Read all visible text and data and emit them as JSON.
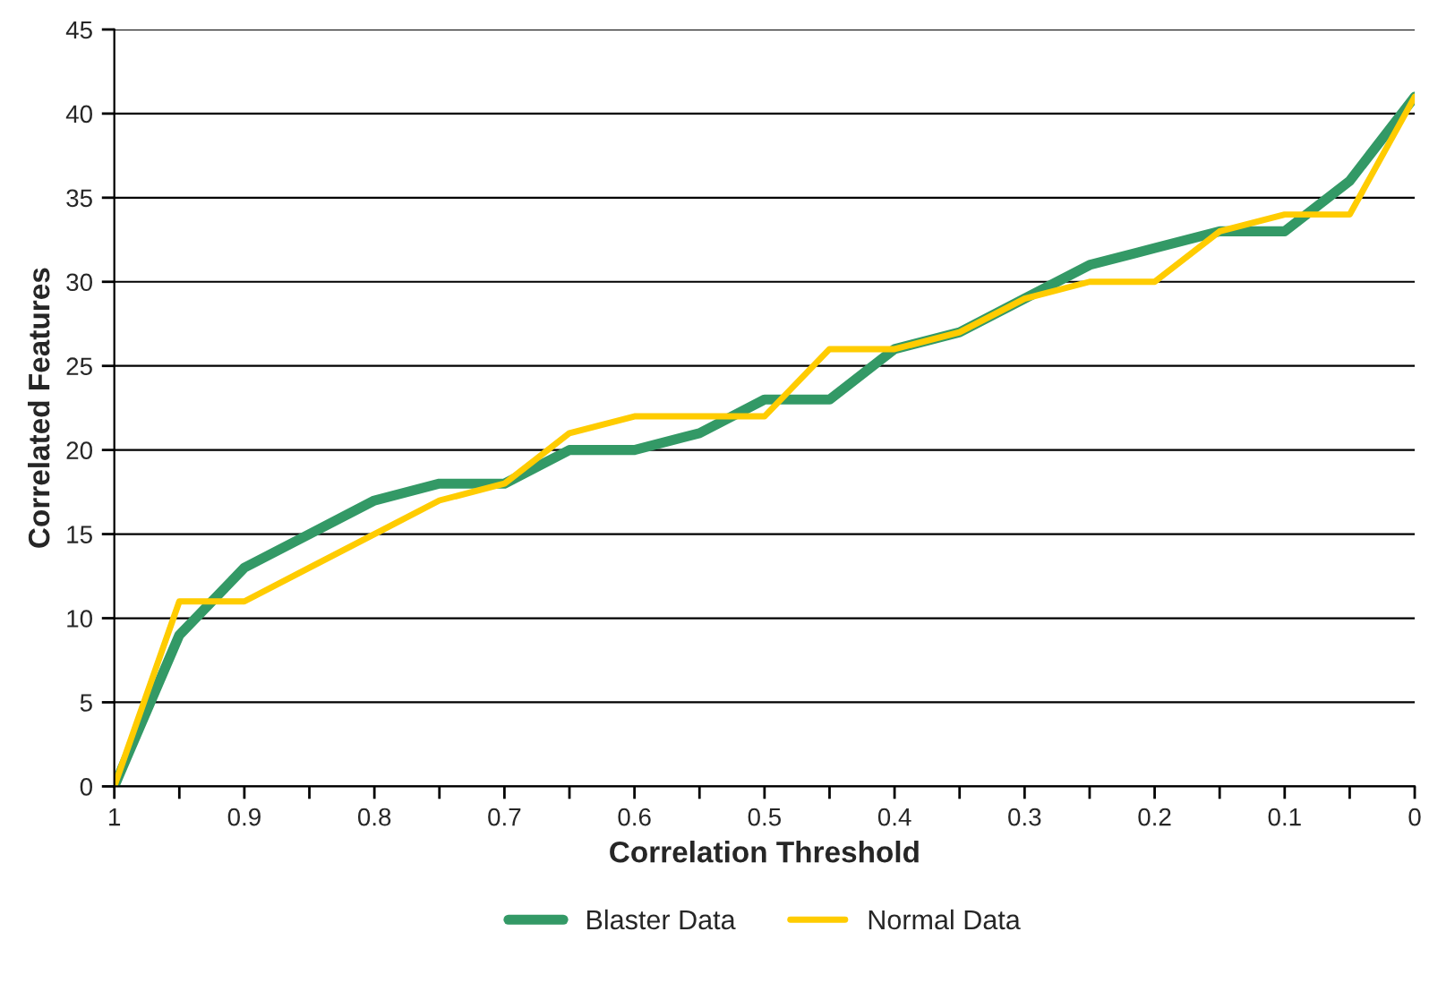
{
  "chart_data": {
    "type": "line",
    "xlabel": "Correlation Threshold",
    "ylabel": "Correlated Features",
    "x": [
      1,
      0.95,
      0.9,
      0.85,
      0.8,
      0.75,
      0.7,
      0.65,
      0.6,
      0.55,
      0.5,
      0.45,
      0.4,
      0.35,
      0.3,
      0.25,
      0.2,
      0.15,
      0.1,
      0.05,
      0
    ],
    "series": [
      {
        "name": "Blaster Data",
        "color": "#339966",
        "values": [
          0,
          9,
          13,
          15,
          17,
          18,
          18,
          20,
          20,
          21,
          23,
          23,
          26,
          27,
          29,
          31,
          32,
          33,
          33,
          36,
          41
        ]
      },
      {
        "name": "Normal Data",
        "color": "#ffcc00",
        "values": [
          0,
          11,
          11,
          13,
          15,
          17,
          18,
          21,
          22,
          22,
          22,
          26,
          26,
          27,
          29,
          30,
          30,
          33,
          34,
          34,
          41
        ]
      }
    ],
    "xlim": [
      1,
      0
    ],
    "ylim": [
      0,
      45
    ],
    "xticks": [
      1,
      {
        "value": 0.95,
        "label": null
      },
      0.9,
      {
        "value": 0.85,
        "label": null
      },
      0.8,
      {
        "value": 0.75,
        "label": null
      },
      0.7,
      {
        "value": 0.65,
        "label": null
      },
      0.6,
      {
        "value": 0.55,
        "label": null
      },
      0.5,
      {
        "value": 0.45,
        "label": null
      },
      0.4,
      {
        "value": 0.35,
        "label": null
      },
      0.3,
      {
        "value": 0.25,
        "label": null
      },
      0.2,
      {
        "value": 0.15,
        "label": null
      },
      0.1,
      {
        "value": 0.05,
        "label": null
      },
      0
    ],
    "yticks": [
      0,
      5,
      10,
      15,
      20,
      25,
      30,
      35,
      40,
      45
    ],
    "grid": "y",
    "legend": "bottom",
    "marker": "none",
    "line_style": "solid"
  }
}
